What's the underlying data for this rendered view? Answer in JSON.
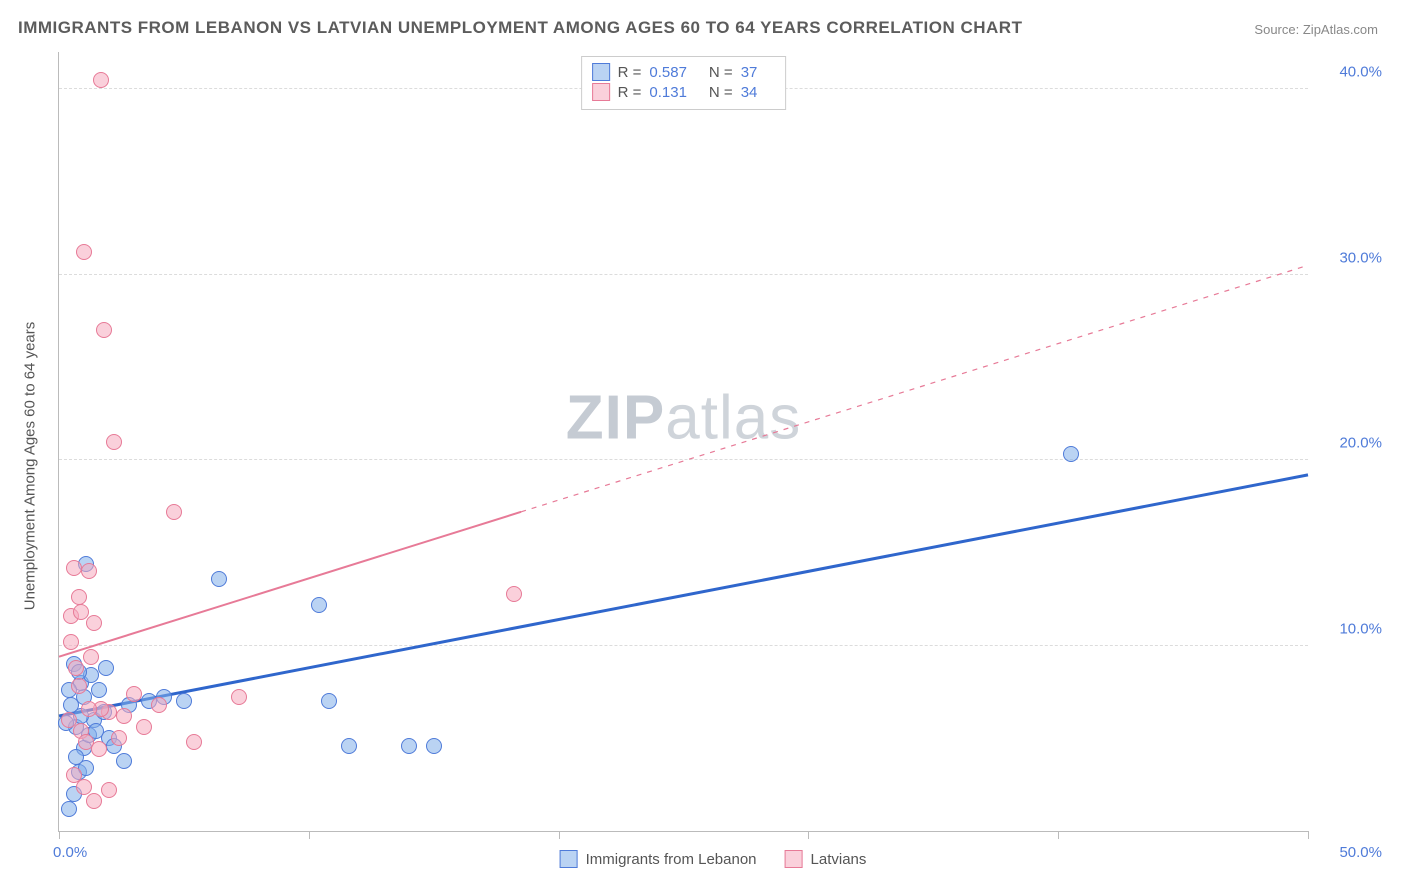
{
  "title": "IMMIGRANTS FROM LEBANON VS LATVIAN UNEMPLOYMENT AMONG AGES 60 TO 64 YEARS CORRELATION CHART",
  "source_label": "Source:",
  "source_name": "ZipAtlas.com",
  "ylabel": "Unemployment Among Ages 60 to 64 years",
  "watermark_a": "ZIP",
  "watermark_b": "atlas",
  "chart": {
    "type": "scatter",
    "background_color": "#ffffff",
    "grid_color": "#dcdcdc",
    "axis_color": "#bbbbbb",
    "xlim": [
      0,
      50
    ],
    "ylim": [
      0,
      42
    ],
    "xticks": [
      0,
      10,
      20,
      30,
      40,
      50
    ],
    "xtick_labels": [
      "0.0%",
      "",
      "",
      "",
      "",
      "50.0%"
    ],
    "yticks": [
      10,
      20,
      30,
      40
    ],
    "ytick_labels": [
      "10.0%",
      "20.0%",
      "30.0%",
      "40.0%"
    ],
    "tick_label_color": "#4f7bd9",
    "tick_label_fontsize": 15,
    "series": [
      {
        "name": "Immigrants from Lebanon",
        "color_fill": "rgba(129,174,234,0.55)",
        "color_stroke": "#4f7bd9",
        "marker_radius": 8,
        "R": "0.587",
        "N": "37",
        "trend": {
          "x1": 0,
          "y1": 6.2,
          "x2": 50,
          "y2": 19.2,
          "solid_until_x": 50,
          "stroke": "#2f66cc",
          "width": 3
        },
        "points": [
          [
            0.4,
            1.2
          ],
          [
            0.6,
            2.0
          ],
          [
            0.8,
            3.2
          ],
          [
            1.0,
            4.5
          ],
          [
            1.2,
            5.2
          ],
          [
            0.7,
            5.6
          ],
          [
            1.4,
            6.0
          ],
          [
            1.8,
            6.4
          ],
          [
            0.5,
            6.8
          ],
          [
            1.0,
            7.2
          ],
          [
            1.6,
            7.6
          ],
          [
            2.0,
            5.0
          ],
          [
            2.2,
            4.6
          ],
          [
            2.6,
            3.8
          ],
          [
            0.9,
            8.0
          ],
          [
            1.3,
            8.4
          ],
          [
            0.6,
            9.0
          ],
          [
            1.1,
            14.4
          ],
          [
            2.8,
            6.8
          ],
          [
            3.6,
            7.0
          ],
          [
            4.2,
            7.2
          ],
          [
            5.0,
            7.0
          ],
          [
            6.4,
            13.6
          ],
          [
            10.4,
            12.2
          ],
          [
            10.8,
            7.0
          ],
          [
            11.6,
            4.6
          ],
          [
            14.0,
            4.6
          ],
          [
            15.0,
            4.6
          ],
          [
            40.5,
            20.3
          ],
          [
            0.3,
            5.8
          ],
          [
            0.9,
            6.2
          ],
          [
            1.5,
            5.4
          ],
          [
            0.7,
            4.0
          ],
          [
            1.1,
            3.4
          ],
          [
            1.9,
            8.8
          ],
          [
            0.4,
            7.6
          ],
          [
            0.8,
            8.6
          ]
        ]
      },
      {
        "name": "Latvians",
        "color_fill": "rgba(245,170,190,0.55)",
        "color_stroke": "#e77a97",
        "marker_radius": 8,
        "R": "0.131",
        "N": "34",
        "trend": {
          "x1": 0,
          "y1": 9.4,
          "x2": 50,
          "y2": 30.5,
          "solid_until_x": 18.5,
          "stroke": "#e77a97",
          "width": 2
        },
        "points": [
          [
            1.7,
            40.5
          ],
          [
            1.0,
            31.2
          ],
          [
            1.8,
            27.0
          ],
          [
            2.2,
            21.0
          ],
          [
            0.6,
            14.2
          ],
          [
            1.2,
            14.0
          ],
          [
            0.8,
            12.6
          ],
          [
            0.5,
            11.6
          ],
          [
            1.4,
            11.2
          ],
          [
            4.6,
            17.2
          ],
          [
            0.4,
            6.0
          ],
          [
            0.9,
            5.4
          ],
          [
            1.1,
            4.8
          ],
          [
            1.6,
            4.4
          ],
          [
            2.0,
            6.4
          ],
          [
            2.4,
            5.0
          ],
          [
            3.0,
            7.4
          ],
          [
            3.4,
            5.6
          ],
          [
            4.0,
            6.8
          ],
          [
            5.4,
            4.8
          ],
          [
            7.2,
            7.2
          ],
          [
            18.2,
            12.8
          ],
          [
            0.6,
            3.0
          ],
          [
            1.0,
            2.4
          ],
          [
            1.4,
            1.6
          ],
          [
            2.0,
            2.2
          ],
          [
            0.7,
            8.8
          ],
          [
            1.3,
            9.4
          ],
          [
            0.5,
            10.2
          ],
          [
            0.9,
            11.8
          ],
          [
            1.7,
            6.6
          ],
          [
            2.6,
            6.2
          ],
          [
            0.8,
            7.8
          ],
          [
            1.2,
            6.6
          ]
        ]
      }
    ]
  },
  "legend_top": {
    "rows": [
      {
        "swatch": "blue",
        "r_label": "R =",
        "r_val": "0.587",
        "n_label": "N =",
        "n_val": "37"
      },
      {
        "swatch": "pink",
        "r_label": "R =",
        "r_val": "0.131",
        "n_label": "N =",
        "n_val": "34"
      }
    ]
  },
  "legend_bottom": {
    "items": [
      {
        "swatch": "blue",
        "label": "Immigrants from Lebanon"
      },
      {
        "swatch": "pink",
        "label": "Latvians"
      }
    ]
  }
}
